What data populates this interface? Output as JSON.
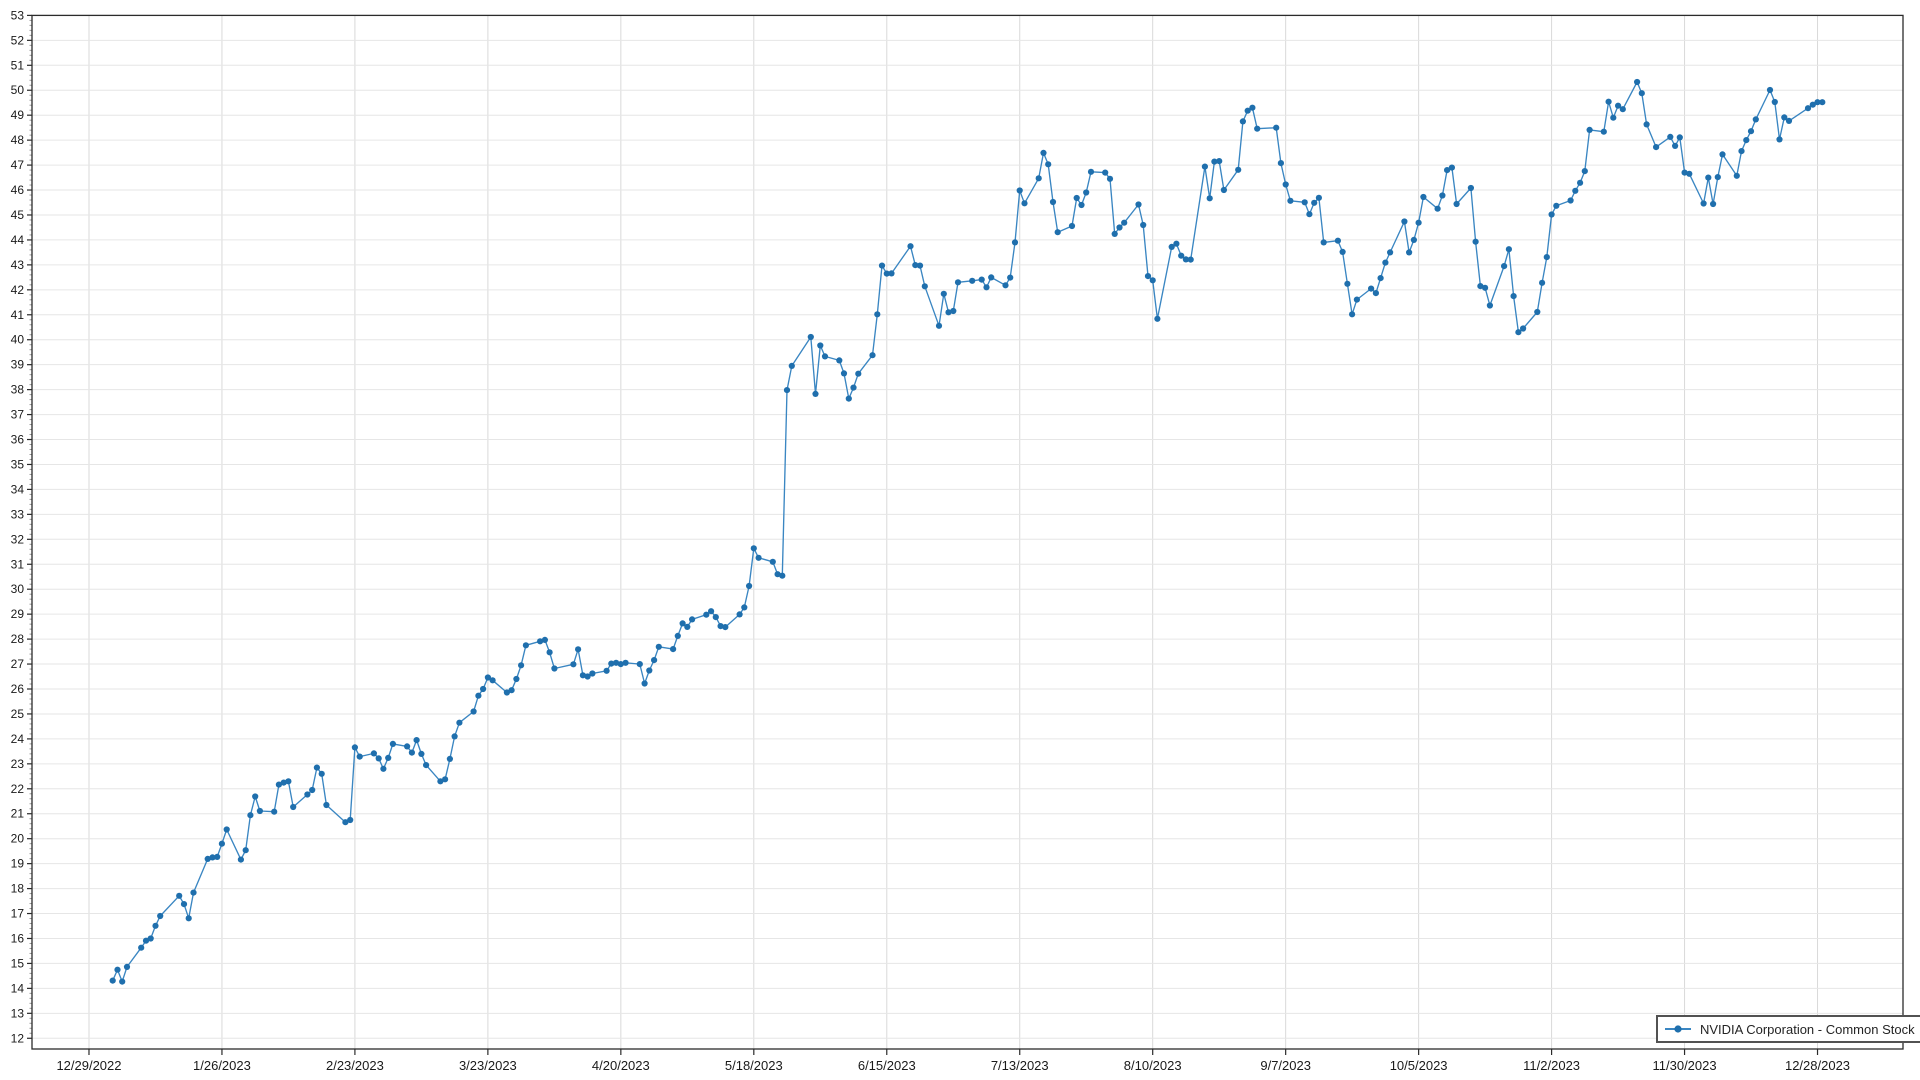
{
  "window": {
    "title": "",
    "background_color": "#ffffff"
  },
  "legend": {
    "label": "NVIDIA Corporation - Common Stock",
    "position": "bottom-right"
  },
  "colors": {
    "series_line": "#3a86c2",
    "series_marker": "#1f6fad",
    "axis_spine": "#2b2b2b",
    "grid_vertical": "#d9d9d9",
    "grid_horizontal": "#e6e6e6",
    "minor_tick": "#9a9a9a",
    "tick_label": "#1a1a1a",
    "legend_border": "#525252"
  },
  "chart_data": {
    "type": "line",
    "title": "",
    "xlabel": "",
    "ylabel": "",
    "grid": true,
    "legend_position": "bottom-right",
    "y_axis": {
      "range": [
        11.57,
        53
      ],
      "tick_min": 12,
      "tick_max": 53,
      "tick_step": 1,
      "minor_tick_step": 0.2
    },
    "x_axis": {
      "base_date": "12/29/2022",
      "range_days": [
        -12,
        382
      ],
      "tick_interval_days": 28,
      "tick_labels": [
        "12/29/2022",
        "1/26/2023",
        "2/23/2023",
        "3/23/2023",
        "4/20/2023",
        "5/18/2023",
        "6/15/2023",
        "7/13/2023",
        "8/10/2023",
        "9/7/2023",
        "10/5/2023",
        "11/2/2023",
        "11/30/2023",
        "12/28/2023"
      ]
    },
    "series": [
      {
        "name": "NVIDIA Corporation - Common Stock",
        "line_color": "#3a86c2",
        "marker_color": "#1f6fad",
        "marker": "circle",
        "dates": [
          "1/3",
          "1/4",
          "1/5",
          "1/6",
          "1/9",
          "1/10",
          "1/11",
          "1/12",
          "1/13",
          "1/17",
          "1/18",
          "1/19",
          "1/20",
          "1/23",
          "1/24",
          "1/25",
          "1/26",
          "1/27",
          "1/30",
          "1/31",
          "2/1",
          "2/2",
          "2/3",
          "2/6",
          "2/7",
          "2/8",
          "2/9",
          "2/10",
          "2/13",
          "2/14",
          "2/15",
          "2/16",
          "2/17",
          "2/21",
          "2/22",
          "2/23",
          "2/24",
          "2/27",
          "2/28",
          "3/1",
          "3/2",
          "3/3",
          "3/6",
          "3/7",
          "3/8",
          "3/9",
          "3/10",
          "3/13",
          "3/14",
          "3/15",
          "3/16",
          "3/17",
          "3/20",
          "3/21",
          "3/22",
          "3/23",
          "3/24",
          "3/27",
          "3/28",
          "3/29",
          "3/30",
          "3/31",
          "4/3",
          "4/4",
          "4/5",
          "4/6",
          "4/10",
          "4/11",
          "4/12",
          "4/13",
          "4/14",
          "4/17",
          "4/18",
          "4/19",
          "4/20",
          "4/21",
          "4/24",
          "4/25",
          "4/26",
          "4/27",
          "4/28",
          "5/1",
          "5/2",
          "5/3",
          "5/4",
          "5/5",
          "5/8",
          "5/9",
          "5/10",
          "5/11",
          "5/12",
          "5/15",
          "5/16",
          "5/17",
          "5/18",
          "5/19",
          "5/22",
          "5/23",
          "5/24",
          "5/25",
          "5/26",
          "5/30",
          "5/31",
          "6/1",
          "6/2",
          "6/5",
          "6/6",
          "6/7",
          "6/8",
          "6/9",
          "6/12",
          "6/13",
          "6/14",
          "6/15",
          "6/16",
          "6/20",
          "6/21",
          "6/22",
          "6/23",
          "6/26",
          "6/27",
          "6/28",
          "6/29",
          "6/30",
          "7/3",
          "7/5",
          "7/6",
          "7/7",
          "7/10",
          "7/11",
          "7/12",
          "7/13",
          "7/14",
          "7/17",
          "7/18",
          "7/19",
          "7/20",
          "7/21",
          "7/24",
          "7/25",
          "7/26",
          "7/27",
          "7/28",
          "7/31",
          "8/1",
          "8/2",
          "8/3",
          "8/4",
          "8/7",
          "8/8",
          "8/9",
          "8/10",
          "8/11",
          "8/14",
          "8/15",
          "8/16",
          "8/17",
          "8/18",
          "8/21",
          "8/22",
          "8/23",
          "8/24",
          "8/25",
          "8/28",
          "8/29",
          "8/30",
          "8/31",
          "9/1",
          "9/5",
          "9/6",
          "9/7",
          "9/8",
          "9/11",
          "9/12",
          "9/13",
          "9/14",
          "9/15",
          "9/18",
          "9/19",
          "9/20",
          "9/21",
          "9/22",
          "9/25",
          "9/26",
          "9/27",
          "9/28",
          "9/29",
          "10/2",
          "10/3",
          "10/4",
          "10/5",
          "10/6",
          "10/9",
          "10/10",
          "10/11",
          "10/12",
          "10/13",
          "10/16",
          "10/17",
          "10/18",
          "10/19",
          "10/20",
          "10/23",
          "10/24",
          "10/25",
          "10/26",
          "10/27",
          "10/30",
          "10/31",
          "11/1",
          "11/2",
          "11/3",
          "11/6",
          "11/7",
          "11/8",
          "11/9",
          "11/10",
          "11/13",
          "11/14",
          "11/15",
          "11/16",
          "11/17",
          "11/20",
          "11/21",
          "11/22",
          "11/24",
          "11/27",
          "11/28",
          "11/29",
          "11/30",
          "12/1",
          "12/4",
          "12/5",
          "12/6",
          "12/7",
          "12/8",
          "12/11",
          "12/12",
          "12/13",
          "12/14",
          "12/15",
          "12/18",
          "12/19",
          "12/20",
          "12/21",
          "12/22",
          "12/26",
          "12/27",
          "12/28",
          "12/29"
        ],
        "values": [
          14.31,
          14.75,
          14.27,
          14.86,
          15.63,
          15.91,
          16.0,
          16.51,
          16.9,
          17.71,
          17.38,
          16.81,
          17.84,
          19.19,
          19.25,
          19.27,
          19.8,
          20.37,
          19.16,
          19.54,
          20.94,
          21.69,
          21.11,
          21.08,
          22.17,
          22.25,
          22.3,
          21.27,
          21.77,
          21.95,
          22.85,
          22.6,
          21.35,
          20.66,
          20.75,
          23.66,
          23.29,
          23.42,
          23.22,
          22.8,
          23.24,
          23.8,
          23.7,
          23.45,
          23.95,
          23.4,
          22.95,
          22.3,
          22.38,
          23.2,
          24.1,
          24.65,
          25.1,
          25.73,
          26.0,
          26.46,
          26.35,
          25.86,
          25.95,
          26.4,
          26.95,
          27.75,
          27.91,
          27.97,
          27.47,
          26.82,
          26.99,
          27.59,
          26.55,
          26.5,
          26.62,
          26.73,
          27.02,
          27.05,
          27.0,
          27.05,
          27.0,
          26.22,
          26.74,
          27.16,
          27.69,
          27.6,
          28.13,
          28.63,
          28.49,
          28.79,
          28.98,
          29.12,
          28.88,
          28.52,
          28.48,
          28.99,
          29.27,
          30.13,
          31.64,
          31.26,
          31.1,
          30.6,
          30.54,
          37.98,
          38.95,
          40.11,
          37.83,
          39.77,
          39.33,
          39.17,
          38.65,
          37.64,
          38.08,
          38.64,
          39.38,
          41.02,
          42.97,
          42.65,
          42.66,
          43.75,
          42.99,
          42.97,
          42.14,
          40.56,
          41.84,
          41.1,
          41.15,
          42.3,
          42.36,
          42.41,
          42.1,
          42.5,
          42.18,
          42.49,
          43.9,
          45.98,
          45.47,
          46.47,
          47.49,
          47.03,
          45.52,
          44.31,
          44.56,
          45.68,
          45.4,
          45.9,
          46.73,
          46.7,
          46.45,
          44.24,
          44.5,
          44.69,
          45.42,
          44.6,
          42.55,
          42.38,
          40.84,
          43.72,
          43.85,
          43.37,
          43.22,
          43.21,
          46.94,
          45.67,
          47.14,
          47.16,
          46.0,
          46.81,
          48.75,
          49.18,
          49.3,
          48.46,
          48.5,
          47.08,
          46.22,
          45.57,
          45.51,
          45.03,
          45.49,
          45.69,
          43.9,
          43.97,
          43.52,
          42.24,
          41.02,
          41.61,
          42.05,
          41.87,
          42.47,
          43.09,
          43.5,
          44.74,
          43.5,
          44.0,
          44.69,
          45.72,
          45.25,
          45.78,
          46.8,
          46.9,
          45.44,
          46.08,
          43.93,
          42.15,
          42.08,
          41.37,
          42.95,
          43.63,
          41.75,
          40.3,
          40.45,
          41.11,
          42.28,
          43.31,
          45.02,
          45.37,
          45.58,
          45.97,
          46.29,
          46.76,
          48.41,
          48.34,
          49.54,
          48.9,
          49.38,
          49.24,
          50.33,
          49.88,
          48.63,
          47.72,
          48.13,
          47.77,
          48.11,
          46.7,
          46.65,
          45.46,
          46.5,
          45.44,
          46.52,
          47.43,
          46.57,
          47.56,
          48.0,
          48.36,
          48.83,
          50.01,
          49.53,
          48.03,
          48.91,
          48.77,
          49.28,
          49.42,
          49.52,
          49.52
        ]
      }
    ]
  }
}
